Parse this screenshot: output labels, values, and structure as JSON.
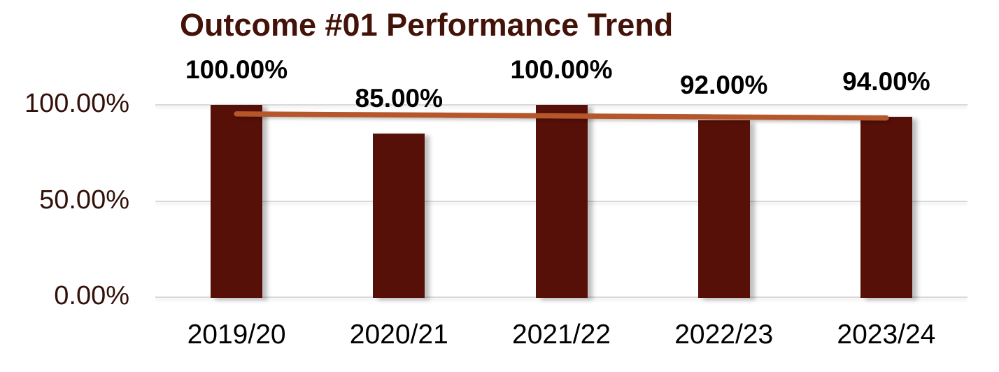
{
  "chart_data": {
    "type": "bar",
    "title": "Outcome #01 Performance Trend",
    "categories": [
      "2019/20",
      "2020/21",
      "2021/22",
      "2022/23",
      "2023/24"
    ],
    "values": [
      100,
      85,
      100,
      92,
      94
    ],
    "value_labels": [
      "100.00%",
      "85.00%",
      "100.00%",
      "92.00%",
      "94.00%"
    ],
    "trendline": {
      "type": "linear",
      "start_value": 95.3,
      "end_value": 93.2
    },
    "xlabel": "",
    "ylabel": "",
    "ylim": [
      0,
      100
    ],
    "yticks": [
      {
        "value": 0,
        "label": "0.00%"
      },
      {
        "value": 50,
        "label": "50.00%"
      },
      {
        "value": 100,
        "label": "100.00%"
      }
    ],
    "grid": true,
    "legend_position": "none",
    "colors": {
      "bar": "#571008",
      "trendline": "#B5562B",
      "title": "#431208",
      "ytick_label": "#33100A",
      "xtick_label": "#000000",
      "data_label": "#000000",
      "gridline": "#D9D9D9",
      "background": "#FFFFFF"
    }
  }
}
